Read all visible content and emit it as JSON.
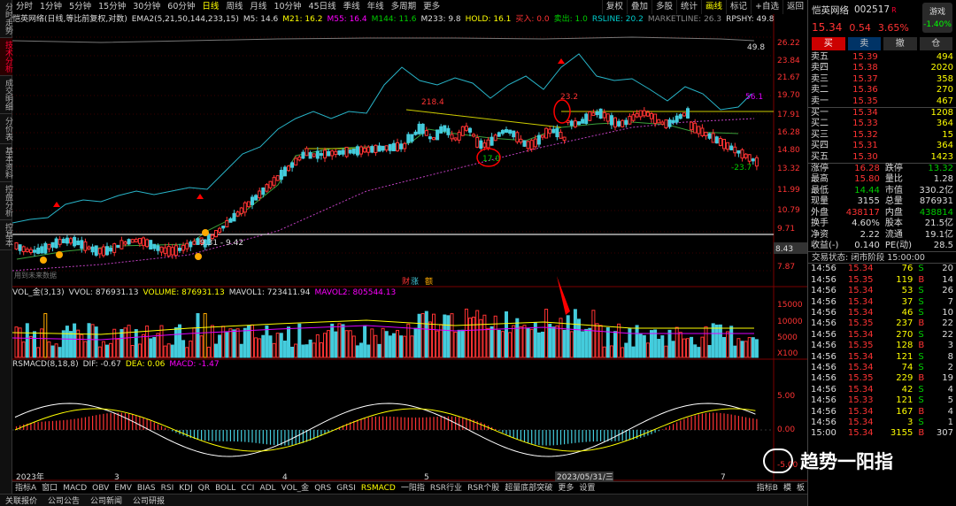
{
  "sidebar": [
    "分时走势",
    "技术分析",
    "成交明细",
    "分价表",
    "基本资料",
    "控盘分析",
    "控基本"
  ],
  "sidebar_active": 1,
  "timeframes": [
    "分时",
    "1分钟",
    "5分钟",
    "15分钟",
    "30分钟",
    "60分钟",
    "日线",
    "周线",
    "月线",
    "10分钟",
    "45日线",
    "季线",
    "年线",
    "多周期",
    "更多"
  ],
  "timeframe_active": 6,
  "tools": [
    "复权",
    "叠加",
    "多股",
    "统计",
    "画线",
    "标记",
    "+自选",
    "返回"
  ],
  "tools_active": 4,
  "main_indicator": {
    "title": "恺英网络(日线,等比前复权,对数)",
    "ema2": "EMA2(5,21,50,144,233,15)",
    "m5": "M5: 14.6",
    "m21": "M21: 16.2",
    "m55": "M55: 16.4",
    "m144": "M144: 11.6",
    "m233": "M233: 9.8",
    "hold": "HOLD: 16.1",
    "buy": "买入: 0.0",
    "sell": "卖出: 1.0",
    "rsline": "RSLINE: 20.2",
    "marketline": "MARKETLINE: 26.3",
    "rpshy": "RPSHY: 49.8"
  },
  "price_axis": [
    "26.22",
    "23.84",
    "21.67",
    "19.70",
    "17.91",
    "16.28",
    "14.80",
    "13.32",
    "11.99",
    "10.79",
    "9.71",
    "8.43",
    "7.87"
  ],
  "annotations": {
    "rps": "49.8",
    "rps2": "56.1",
    "v2184": "218.4",
    "v23": "23.2",
    "v17": "17.0",
    "v237": "-23.7",
    "v931": "9.31 - 9.42",
    "no_data": "用到未来数据"
  },
  "caiz": {
    "a": "财",
    "b": "涨",
    "c": "额"
  },
  "vol_indicator": {
    "title": "VOL_金(3,13)",
    "vvol": "VVOL: 876931.13",
    "volume": "VOLUME: 876931.13",
    "mavol1": "MAVOL1: 723411.94",
    "mavol2": "MAVOL2: 805544.13"
  },
  "vol_axis": [
    "15000",
    "10000",
    "5000",
    "X100"
  ],
  "macd_indicator": {
    "title": "RSMACD(8,18,8)",
    "dif": "DIF: -0.67",
    "dea": "DEA: 0.06",
    "macd": "MACD: -1.47"
  },
  "macd_axis": [
    "5.00",
    "0.00",
    "-5.00"
  ],
  "date_axis": [
    "2023年",
    "3",
    "4",
    "5",
    "2023/05/31/三",
    "7"
  ],
  "bottom_tabs": [
    "指标A",
    "窗口",
    "MACD",
    "OBV",
    "EMV",
    "BIAS",
    "RSI",
    "KDJ",
    "QR",
    "BOLL",
    "CCI",
    "ADL",
    "VOL_金",
    "QRS",
    "GRSI",
    "RSMACD",
    "一阳指",
    "RSR行业",
    "RSR个股",
    "超量底部突破",
    "更多",
    "设置"
  ],
  "bottom_active": 15,
  "bottom_right": [
    "指标B",
    "模",
    "板"
  ],
  "status_left": [
    "关联报价",
    "公司公告",
    "公司新闻",
    "公司研报"
  ],
  "status_right": [
    "沙盘",
    "F10",
    "侧边",
    "笔"
  ],
  "stock": {
    "name": "恺英网络",
    "code": "002517",
    "mark": "R",
    "price": "15.34",
    "change": "0.54",
    "pct": "3.65%",
    "game_label": "游戏",
    "game_pct": "-1.40%"
  },
  "buttons": [
    "买",
    "卖",
    "撤",
    "仓"
  ],
  "asks": [
    [
      "卖五",
      "15.39",
      "494"
    ],
    [
      "卖四",
      "15.38",
      "2020"
    ],
    [
      "卖三",
      "15.37",
      "358"
    ],
    [
      "卖二",
      "15.36",
      "270"
    ],
    [
      "卖一",
      "15.35",
      "467"
    ]
  ],
  "bids": [
    [
      "买一",
      "15.34",
      "1208"
    ],
    [
      "买二",
      "15.33",
      "364"
    ],
    [
      "买三",
      "15.32",
      "15"
    ],
    [
      "买四",
      "15.31",
      "364"
    ],
    [
      "买五",
      "15.30",
      "1423"
    ]
  ],
  "stats": [
    [
      "涨停",
      "16.28",
      "跌停",
      "13.32"
    ],
    [
      "最高",
      "15.80",
      "量比",
      "1.28"
    ],
    [
      "最低",
      "14.44",
      "市值",
      "330.2亿"
    ],
    [
      "现量",
      "3155",
      "总量",
      "876931"
    ],
    [
      "外盘",
      "438117",
      "内盘",
      "438814"
    ],
    [
      "换手",
      "4.60%",
      "股本",
      "21.5亿"
    ],
    [
      "净资",
      "2.22",
      "流通",
      "19.1亿"
    ],
    [
      "收益(-)",
      "0.140",
      "PE(动)",
      "28.5"
    ]
  ],
  "trade_status": "交易状态: 闭市阶段 15:00:00",
  "ticks": [
    [
      "14:56",
      "15.34",
      "76",
      "S",
      "20"
    ],
    [
      "14:56",
      "15.35",
      "119",
      "B",
      "14"
    ],
    [
      "14:56",
      "15.34",
      "53",
      "S",
      "26"
    ],
    [
      "14:56",
      "15.34",
      "37",
      "S",
      "7"
    ],
    [
      "14:56",
      "15.34",
      "46",
      "S",
      "10"
    ],
    [
      "14:56",
      "15.35",
      "237",
      "B",
      "22"
    ],
    [
      "14:56",
      "15.34",
      "270",
      "S",
      "22"
    ],
    [
      "14:56",
      "15.35",
      "128",
      "B",
      "3"
    ],
    [
      "14:56",
      "15.34",
      "121",
      "S",
      "8"
    ],
    [
      "14:56",
      "15.34",
      "74",
      "S",
      "2"
    ],
    [
      "14:56",
      "15.35",
      "229",
      "B",
      "19"
    ],
    [
      "14:56",
      "15.34",
      "42",
      "S",
      "4"
    ],
    [
      "14:56",
      "15.33",
      "121",
      "S",
      "5"
    ],
    [
      "14:56",
      "15.34",
      "167",
      "B",
      "4"
    ],
    [
      "14:56",
      "15.34",
      "3",
      "S",
      "1"
    ],
    [
      "15:00",
      "15.34",
      "3155",
      "B",
      "307"
    ]
  ],
  "watermark": "趋势一阳指"
}
